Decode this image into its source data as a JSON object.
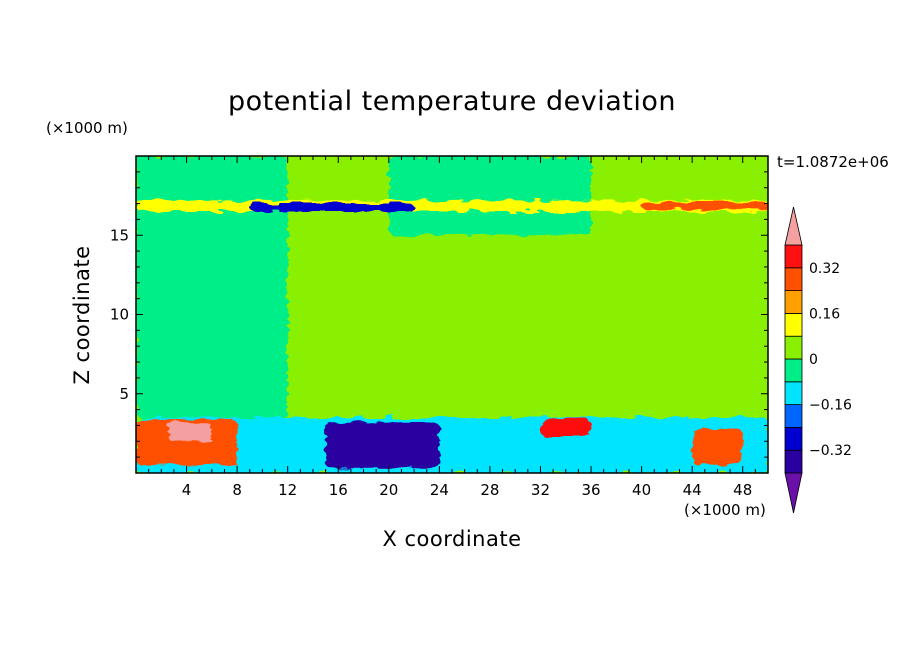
{
  "chart_data": {
    "type": "heatmap",
    "title": "potential temperature deviation",
    "xlabel": "X coordinate",
    "ylabel": "Z coordinate",
    "x_unit": "(×1000 m)",
    "y_unit": "(×1000 m)",
    "annotation": "t=1.0872e+06",
    "xlim": [
      0,
      50
    ],
    "ylim": [
      0,
      20
    ],
    "x_ticks": [
      4,
      8,
      12,
      16,
      20,
      24,
      28,
      32,
      36,
      40,
      44,
      48
    ],
    "y_ticks": [
      5,
      10,
      15
    ],
    "colorbar": {
      "levels": [
        -0.4,
        -0.32,
        -0.24,
        -0.16,
        -0.08,
        0,
        0.08,
        0.16,
        0.24,
        0.32,
        0.4
      ],
      "tick_labels": [
        "0.32",
        "0.16",
        "0",
        "−0.16",
        "−0.32"
      ],
      "tick_values": [
        0.32,
        0.16,
        0,
        -0.16,
        -0.32
      ],
      "colors": [
        "#6a0fa8",
        "#2a00a0",
        "#0000d0",
        "#0066ff",
        "#00e4ff",
        "#00ee88",
        "#88f000",
        "#ffff00",
        "#ffa000",
        "#ff5000",
        "#ff1010",
        "#f5a0a0"
      ],
      "extend": "both"
    },
    "field_description": "Near-zero background; thin strong inversion layer near z≈17; strong positive and negative anomalies in lowest 3.5 km",
    "features": [
      {
        "x": [
          0,
          50
        ],
        "z": [
          0,
          20
        ],
        "value": 0.04
      },
      {
        "x": [
          0,
          12
        ],
        "z": [
          3.5,
          20
        ],
        "value": -0.04
      },
      {
        "x": [
          20,
          36
        ],
        "z": [
          15,
          20
        ],
        "value": -0.04
      },
      {
        "x": [
          0,
          50
        ],
        "z": [
          16.5,
          17.2
        ],
        "value": 0.12
      },
      {
        "x": [
          9,
          22
        ],
        "z": [
          16.5,
          17.0
        ],
        "value": -0.3
      },
      {
        "x": [
          40,
          50
        ],
        "z": [
          16.6,
          17.1
        ],
        "value": 0.3
      },
      {
        "x": [
          0,
          50
        ],
        "z": [
          0,
          3.5
        ],
        "value": -0.1
      },
      {
        "x": [
          0,
          8
        ],
        "z": [
          0.5,
          3.4
        ],
        "value": 0.3
      },
      {
        "x": [
          2.5,
          6
        ],
        "z": [
          2.0,
          3.2
        ],
        "value": 0.4
      },
      {
        "x": [
          15,
          24
        ],
        "z": [
          0.3,
          3.2
        ],
        "value": -0.35
      },
      {
        "x": [
          32,
          36
        ],
        "z": [
          2.3,
          3.4
        ],
        "value": 0.35
      },
      {
        "x": [
          44,
          48
        ],
        "z": [
          0.5,
          2.8
        ],
        "value": 0.25
      }
    ]
  }
}
